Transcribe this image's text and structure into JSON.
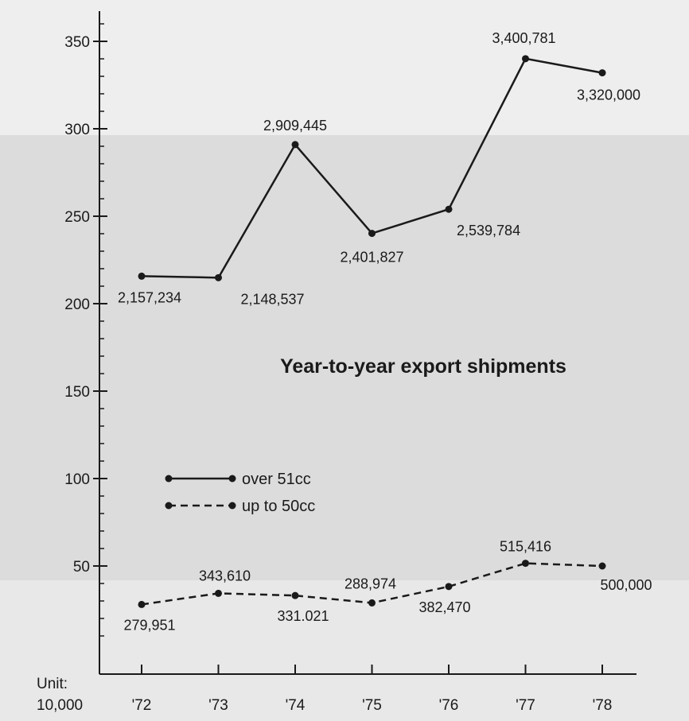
{
  "chart_data": {
    "type": "line",
    "title": "Year-to-year export shipments",
    "unit_label": [
      "Unit:",
      "10,000"
    ],
    "categories": [
      "'72",
      "'73",
      "'74",
      "'75",
      "'76",
      "'77",
      "'78"
    ],
    "ylim": [
      0,
      360
    ],
    "yticks": [
      50,
      100,
      150,
      200,
      250,
      300,
      350
    ],
    "ytick_labels": [
      "50",
      "100",
      "150",
      "200",
      "250",
      "300",
      "350"
    ],
    "grid": false,
    "legend_position": "left",
    "series": [
      {
        "name": "over 51cc",
        "style": "solid",
        "values": [
          215.7234,
          214.8537,
          290.9445,
          240.1827,
          253.9784,
          340.0781,
          332.0
        ],
        "labels": [
          "2,157,234",
          "2,148,537",
          "2,909,445",
          "2,401,827",
          "2,539,784",
          "3,400,781",
          "3,320,000"
        ]
      },
      {
        "name": "up to 50cc",
        "style": "dashed",
        "values": [
          27.9951,
          34.361,
          33.1021,
          28.8974,
          38.247,
          51.5416,
          50.0
        ],
        "labels": [
          "279,951",
          "343,610",
          "331.021",
          "288,974",
          "382,470",
          "515,416",
          "500,000"
        ]
      }
    ]
  }
}
